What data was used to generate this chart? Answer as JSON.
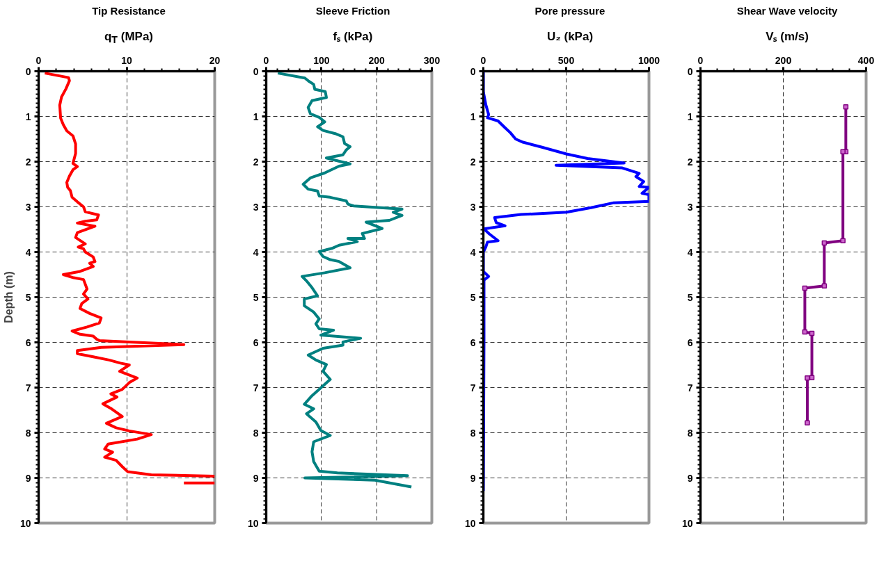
{
  "chart_data": [
    {
      "type": "line",
      "title": "Tip Resistance",
      "xlabel": "q$_{T}$ (MPa)",
      "ylabel": "Depth (m)",
      "xlim": [
        0,
        20
      ],
      "xticks": [
        0,
        10,
        20
      ],
      "ylim": [
        10,
        0
      ],
      "yticks": [
        0,
        1,
        2,
        3,
        4,
        5,
        6,
        7,
        8,
        9,
        10
      ],
      "grid": true,
      "series": [
        {
          "color": "#ff0000",
          "x": [
            0.7,
            3.4,
            3.5,
            3.1,
            2.6,
            2.4,
            2.5,
            2.8,
            3.2,
            3.9,
            4.2,
            4.2,
            3.9,
            4.4,
            3.9,
            3.5,
            3.2,
            3.3,
            3.6,
            3.8,
            4.4,
            5.1,
            5.3,
            6.8,
            6.6,
            5.3,
            4.4,
            6.4,
            4.4,
            4.2,
            5.3,
            4.5,
            5.1,
            5.3,
            6.2,
            6.4,
            5.8,
            6.2,
            4.7,
            2.8,
            4.0,
            5.1,
            5.5,
            5.1,
            5.6,
            4.9,
            4.7,
            5.8,
            7.1,
            6.9,
            5.8,
            5.5,
            3.8,
            4.7,
            6.2,
            6.6,
            6.9,
            16.5,
            7.1,
            4.4,
            4.4,
            6.2,
            8.0,
            9.3,
            10.3,
            9.2,
            11.2,
            10.3,
            9.5,
            8.2,
            8.9,
            7.3,
            8.2,
            9.5,
            7.7,
            8.8,
            10.3,
            12.8,
            11.2,
            7.9,
            7.5,
            8.4,
            7.5,
            8.8,
            9.5,
            10.1,
            12.8,
            20,
            null,
            16.5,
            20
          ],
          "values": [
            0.04,
            0.14,
            0.21,
            0.39,
            0.57,
            0.75,
            1.04,
            1.18,
            1.32,
            1.43,
            1.61,
            1.82,
            2.04,
            2.11,
            2.18,
            2.32,
            2.46,
            2.57,
            2.64,
            2.79,
            2.89,
            3.0,
            3.11,
            3.18,
            3.29,
            3.32,
            3.36,
            3.43,
            3.57,
            3.68,
            3.82,
            3.89,
            3.93,
            4.0,
            4.11,
            4.21,
            4.25,
            4.32,
            4.43,
            4.5,
            4.57,
            4.61,
            4.82,
            4.93,
            5.04,
            5.14,
            5.25,
            5.36,
            5.46,
            5.57,
            5.64,
            5.66,
            5.75,
            5.82,
            5.86,
            5.93,
            5.96,
            6.05,
            6.11,
            6.18,
            6.25,
            6.32,
            6.39,
            6.46,
            6.5,
            6.64,
            6.79,
            6.89,
            7.04,
            7.14,
            7.21,
            7.36,
            7.46,
            7.64,
            7.79,
            7.89,
            7.96,
            8.04,
            8.14,
            8.25,
            8.36,
            8.43,
            8.54,
            8.61,
            8.75,
            8.86,
            8.93,
            8.96,
            null,
            9.11,
            9.11
          ]
        }
      ]
    },
    {
      "type": "line",
      "title": "Sleeve Friction",
      "xlabel": "fₛ (kPa)",
      "xlim": [
        0,
        300
      ],
      "xticks": [
        0,
        100,
        200,
        300
      ],
      "ylim": [
        10,
        0
      ],
      "yticks": [
        0,
        1,
        2,
        3,
        4,
        5,
        6,
        7,
        8,
        9,
        10
      ],
      "grid": true,
      "series": [
        {
          "color": "#008080",
          "x": [
            21,
            70,
            77,
            86,
            88,
            107,
            109,
            83,
            76,
            80,
            96,
            106,
            93,
            103,
            125,
            139,
            142,
            152,
            145,
            139,
            109,
            135,
            152,
            132,
            106,
            80,
            67,
            76,
            93,
            96,
            116,
            145,
            148,
            158,
            246,
            230,
            246,
            223,
            181,
            210,
            174,
            178,
            148,
            165,
            132,
            119,
            96,
            103,
            116,
            132,
            152,
            106,
            65,
            73,
            83,
            93,
            69,
            69,
            86,
            96,
            90,
            96,
            122,
            99,
            171,
            139,
            139,
            103,
            76,
            90,
            109,
            103,
            116,
            96,
            83,
            69,
            86,
            73,
            90,
            99,
            116,
            86,
            83,
            86,
            96,
            129,
            256,
            70,
            197,
            263
          ],
          "values": [
            0.04,
            0.15,
            0.22,
            0.29,
            0.4,
            0.45,
            0.58,
            0.65,
            0.8,
            0.94,
            1.02,
            1.12,
            1.23,
            1.31,
            1.38,
            1.45,
            1.6,
            1.67,
            1.74,
            1.85,
            1.92,
            2.0,
            2.05,
            2.1,
            2.25,
            2.36,
            2.5,
            2.61,
            2.65,
            2.76,
            2.79,
            2.87,
            2.94,
            2.98,
            3.05,
            3.12,
            3.19,
            3.3,
            3.34,
            3.48,
            3.59,
            3.7,
            3.7,
            3.77,
            3.85,
            3.92,
            3.99,
            4.1,
            4.17,
            4.21,
            4.35,
            4.46,
            4.54,
            4.64,
            4.79,
            4.97,
            5.04,
            5.19,
            5.33,
            5.48,
            5.59,
            5.7,
            5.73,
            5.84,
            5.91,
            5.99,
            6.06,
            6.13,
            6.28,
            6.39,
            6.49,
            6.64,
            6.82,
            7.04,
            7.18,
            7.37,
            7.47,
            7.58,
            7.76,
            7.95,
            8.06,
            8.2,
            8.42,
            8.64,
            8.85,
            8.89,
            8.95,
            9.0,
            9.05,
            9.2
          ]
        }
      ]
    },
    {
      "type": "line",
      "title": "Pore pressure",
      "xlabel": "U₂ (kPa)",
      "xlim": [
        0,
        1000
      ],
      "xticks": [
        0,
        500,
        1000
      ],
      "ylim": [
        10,
        0
      ],
      "yticks": [
        0,
        1,
        2,
        3,
        4,
        5,
        6,
        7,
        8,
        9,
        10
      ],
      "grid": true,
      "series": [
        {
          "color": "#0000ff",
          "x": [
            0,
            0,
            15,
            32,
            25,
            89,
            131,
            163,
            195,
            239,
            354,
            502,
            629,
            850,
            439,
            839,
            941,
            921,
            968,
            941,
            1000,
            958,
            1000,
            1000,
            788,
            650,
            502,
            227,
            68,
            78,
            131,
            4,
            36,
            89,
            25,
            15,
            0,
            0,
            32,
            4,
            4,
            0
          ],
          "values": [
            0.01,
            0.45,
            0.74,
            0.96,
            1.03,
            1.1,
            1.25,
            1.36,
            1.5,
            1.57,
            1.68,
            1.83,
            1.93,
            2.03,
            2.08,
            2.14,
            2.26,
            2.33,
            2.44,
            2.55,
            2.57,
            2.7,
            2.73,
            2.88,
            2.91,
            3.02,
            3.12,
            3.17,
            3.24,
            3.35,
            3.42,
            3.49,
            3.6,
            3.75,
            3.78,
            3.89,
            4.0,
            4.43,
            4.54,
            4.62,
            5.96,
            9.29
          ]
        }
      ]
    },
    {
      "type": "line",
      "title": "Shear Wave velocity",
      "xlabel": "Vₛ (m/s)",
      "xlim": [
        0,
        400
      ],
      "xticks": [
        0,
        200,
        400
      ],
      "ylim": [
        10,
        0
      ],
      "yticks": [
        0,
        1,
        2,
        3,
        4,
        5,
        6,
        7,
        8,
        9,
        10
      ],
      "grid": true,
      "marker": "square",
      "series": [
        {
          "color": "#800080",
          "x": [
            351,
            351,
            344,
            344,
            299,
            299,
            252,
            252,
            269,
            269,
            258,
            258
          ],
          "values": [
            0.79,
            1.78,
            1.78,
            3.75,
            3.8,
            4.75,
            4.8,
            5.77,
            5.8,
            6.78,
            6.79,
            7.78
          ]
        }
      ]
    }
  ]
}
